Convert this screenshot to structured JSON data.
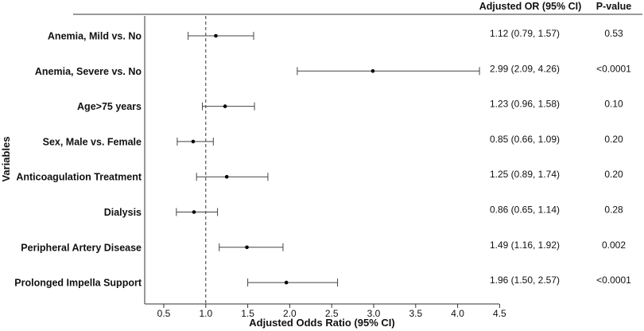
{
  "chart_data": {
    "type": "forest",
    "xlabel": "Adjusted Odds Ratio (95% CI)",
    "ylabel": "Variables",
    "xlim": [
      0.3,
      4.5
    ],
    "xticks": [
      "0.5",
      "1.0",
      "1.5",
      "2.0",
      "2.5",
      "3.0",
      "3.5",
      "4.0",
      "4.5"
    ],
    "reference_line": 1.0,
    "columns": {
      "or_header": "Adjusted OR (95% CI)",
      "p_header": "P-value"
    },
    "rows": [
      {
        "label": "Anemia, Mild vs. No",
        "or": 1.12,
        "lo": 0.79,
        "hi": 1.57,
        "or_text": "1.12 (0.79, 1.57)",
        "p_text": "0.53"
      },
      {
        "label": "Anemia, Severe vs. No",
        "or": 2.99,
        "lo": 2.09,
        "hi": 4.26,
        "or_text": "2.99 (2.09, 4.26)",
        "p_text": "<0.0001"
      },
      {
        "label": "Age>75 years",
        "or": 1.23,
        "lo": 0.96,
        "hi": 1.58,
        "or_text": "1.23 (0.96, 1.58)",
        "p_text": "0.10"
      },
      {
        "label": "Sex, Male vs. Female",
        "or": 0.85,
        "lo": 0.66,
        "hi": 1.09,
        "or_text": "0.85 (0.66, 1.09)",
        "p_text": "0.20"
      },
      {
        "label": "Anticoagulation Treatment",
        "or": 1.25,
        "lo": 0.89,
        "hi": 1.74,
        "or_text": "1.25 (0.89, 1.74)",
        "p_text": "0.20"
      },
      {
        "label": "Dialysis",
        "or": 0.86,
        "lo": 0.65,
        "hi": 1.14,
        "or_text": "0.86 (0.65, 1.14)",
        "p_text": "0.28"
      },
      {
        "label": "Peripheral Artery Disease",
        "or": 1.49,
        "lo": 1.16,
        "hi": 1.92,
        "or_text": "1.49 (1.16, 1.92)",
        "p_text": "0.002"
      },
      {
        "label": "Prolonged Impella Support",
        "or": 1.96,
        "lo": 1.5,
        "hi": 2.57,
        "or_text": "1.96 (1.50, 2.57)",
        "p_text": "<0.0001"
      }
    ]
  }
}
